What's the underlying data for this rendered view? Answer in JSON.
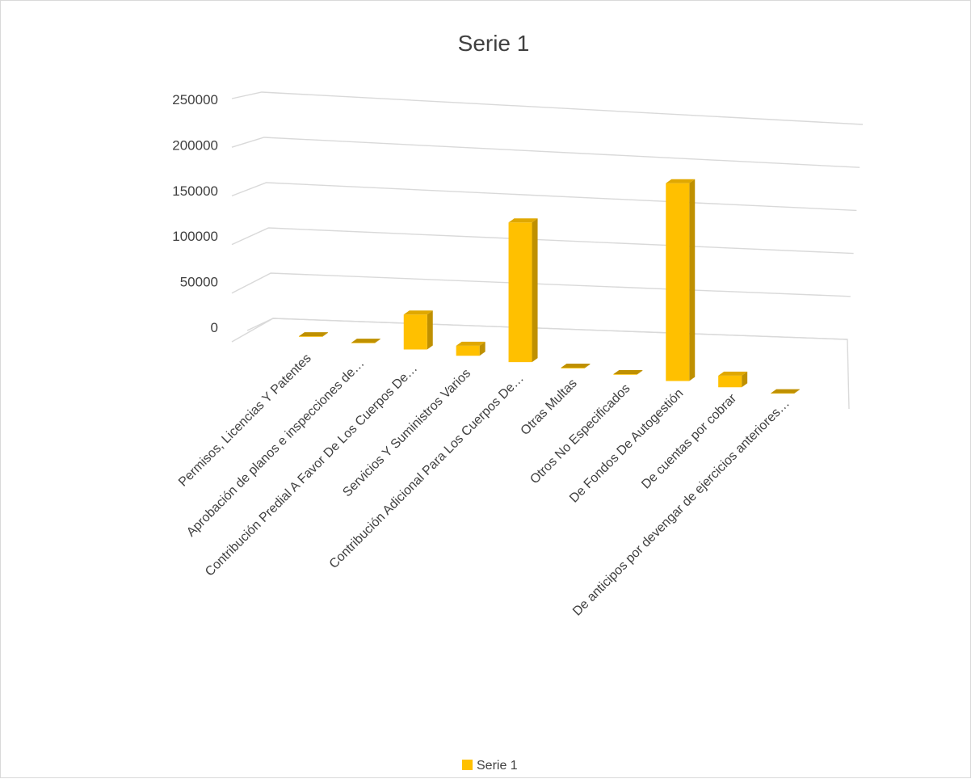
{
  "chart_data": {
    "type": "bar",
    "title": "Serie 1",
    "categories": [
      "Permisos, Licencias Y Patentes",
      "Aprobación de planos e inspecciones de…",
      "Contribución Predial A Favor De Los Cuerpos De…",
      "Servicios Y Suministros Varios",
      "Contribución Adicional Para Los Cuerpos De…",
      "Otras Multas",
      "Otros No Especificados",
      "De Fondos De Autogestión",
      "De cuentas por cobrar",
      "De anticipos por devengar de ejercicios anteriores…"
    ],
    "series": [
      {
        "name": "Serie 1",
        "values": [
          800,
          600,
          45000,
          13000,
          180000,
          900,
          700,
          255000,
          15000,
          500
        ],
        "color": "#FFC000"
      }
    ],
    "yticks": [
      "0",
      "50000",
      "100000",
      "150000",
      "200000",
      "250000"
    ],
    "ylim": [
      0,
      250000
    ],
    "grid": true,
    "legend": "bottom",
    "style": "3d-column"
  }
}
